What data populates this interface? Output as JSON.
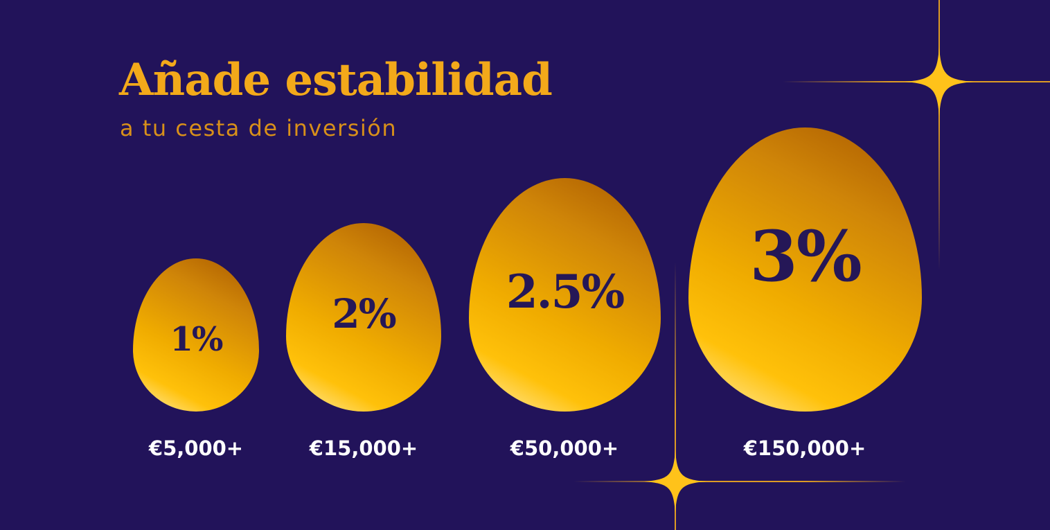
{
  "heading": {
    "title": "Añade estabilidad",
    "subtitle": "a tu cesta de inversión"
  },
  "tiers": [
    {
      "rate": "1%",
      "threshold": "€5,000+"
    },
    {
      "rate": "2%",
      "threshold": "€15,000+"
    },
    {
      "rate": "2.5%",
      "threshold": "€50,000+"
    },
    {
      "rate": "3%",
      "threshold": "€150,000+"
    }
  ],
  "colors": {
    "background": "#22135a",
    "gold": "#f3a91a",
    "egg_text": "#251757",
    "price_text": "#ffffff",
    "sparkle": "#ffc21a"
  },
  "decorations": {
    "sparkle_icon": "four-point-star-icon"
  }
}
